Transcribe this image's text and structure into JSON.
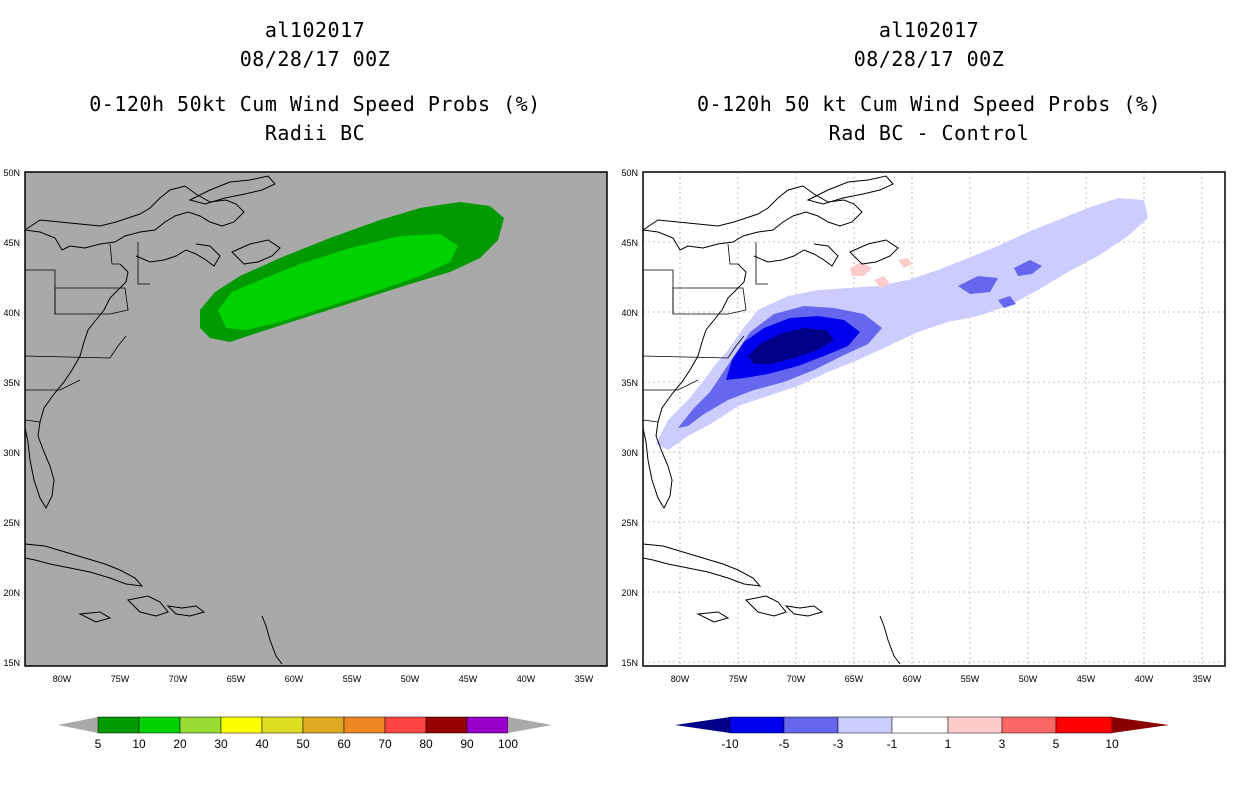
{
  "left_panel": {
    "storm_id": "al102017",
    "datetime": "08/28/17 00Z",
    "product": "0-120h 50kt Cum Wind Speed Probs (%)",
    "experiment": "Radii BC",
    "background_color": "#a9a9a9",
    "colorbar": {
      "colors": [
        "#a9a9a9",
        "#009900",
        "#00d200",
        "#99dc33",
        "#ffff00",
        "#dddd22",
        "#ddaa22",
        "#ee8822",
        "#ff4444",
        "#990000",
        "#9900cc",
        "#a9a9a9"
      ],
      "labels": [
        "5",
        "10",
        "20",
        "30",
        "40",
        "50",
        "60",
        "70",
        "80",
        "90",
        "100"
      ]
    }
  },
  "right_panel": {
    "storm_id": "al102017",
    "datetime": "08/28/17 00Z",
    "product": "0-120h 50 kt Cum Wind Speed Probs (%)",
    "experiment": "Rad BC - Control",
    "background_color": "#ffffff",
    "colorbar": {
      "colors": [
        "#000088",
        "#0000ee",
        "#6666ee",
        "#ccccff",
        "#ffffff",
        "#ffcccc",
        "#ff6666",
        "#ff0000",
        "#880000"
      ],
      "labels": [
        "-10",
        "-5",
        "-3",
        "-1",
        "1",
        "3",
        "5",
        "10"
      ]
    }
  },
  "map_axes": {
    "lat_labels": [
      "50N",
      "45N",
      "40N",
      "35N",
      "30N",
      "25N",
      "20N",
      "15N"
    ],
    "lon_labels": [
      "80W",
      "75W",
      "70W",
      "65W",
      "60W",
      "55W",
      "50W",
      "45W",
      "40W",
      "35W"
    ]
  }
}
